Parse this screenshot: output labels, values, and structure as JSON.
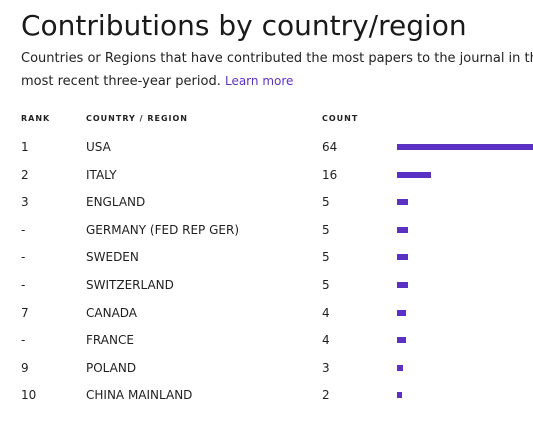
{
  "title": "Contributions by country/region",
  "description": {
    "text": "Countries or Regions that have contributed the most papers to the journal in the most recent three-year period.",
    "link": "Learn more"
  },
  "table": {
    "headers": {
      "rank": "RANK",
      "country": "COUNTRY / REGION",
      "count": "COUNT"
    },
    "bar_color": "#5b31c4",
    "rows": [
      {
        "rank": "1",
        "country": "USA",
        "count": "64",
        "value": 64
      },
      {
        "rank": "2",
        "country": "ITALY",
        "count": "16",
        "value": 16
      },
      {
        "rank": "3",
        "country": "ENGLAND",
        "count": "5",
        "value": 5
      },
      {
        "rank": "-",
        "country": "GERMANY (FED REP GER)",
        "count": "5",
        "value": 5
      },
      {
        "rank": "-",
        "country": "SWEDEN",
        "count": "5",
        "value": 5
      },
      {
        "rank": "-",
        "country": "SWITZERLAND",
        "count": "5",
        "value": 5
      },
      {
        "rank": "7",
        "country": "CANADA",
        "count": "4",
        "value": 4
      },
      {
        "rank": "-",
        "country": "FRANCE",
        "count": "4",
        "value": 4
      },
      {
        "rank": "9",
        "country": "POLAND",
        "count": "3",
        "value": 3
      },
      {
        "rank": "10",
        "country": "CHINA MAINLAND",
        "count": "2",
        "value": 2
      }
    ]
  }
}
